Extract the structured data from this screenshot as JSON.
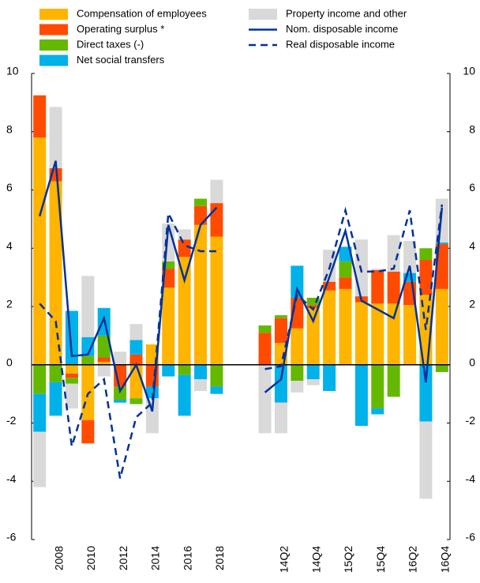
{
  "chart_data": {
    "type": "bar",
    "categories": [
      null,
      "2008",
      null,
      "2010",
      null,
      "2012",
      null,
      "2014",
      null,
      "2016",
      null,
      "2018",
      null,
      null,
      null,
      "14Q2",
      null,
      "14Q4",
      null,
      "15Q2",
      null,
      "15Q4",
      null,
      "16Q2",
      null,
      "16Q4"
    ],
    "ylim": [
      -6,
      10
    ],
    "yticks": [
      -6,
      -4,
      -2,
      0,
      2,
      4,
      6,
      8,
      10
    ],
    "series": [
      {
        "name": "Compensation of employees",
        "type": "bar",
        "color": "#ffb400",
        "values": [
          7.8,
          6.3,
          -0.3,
          -1.9,
          0.1,
          0,
          -1.15,
          0.7,
          2.65,
          3.7,
          4.8,
          4.4,
          null,
          null,
          0,
          0.75,
          1.25,
          1.95,
          2.55,
          2.6,
          2.15,
          2.1,
          2.1,
          2.05,
          2.4,
          2.6
        ]
      },
      {
        "name": "Operating surplus *",
        "type": "bar",
        "color": "#ff4b00",
        "values": [
          1.45,
          0.45,
          -0.15,
          -0.8,
          0.15,
          -0.75,
          0.35,
          -0.75,
          0.65,
          0.6,
          0.65,
          1.15,
          null,
          null,
          1.1,
          0.85,
          1.05,
          0.1,
          0.3,
          0.4,
          0.2,
          1.15,
          1.1,
          0.8,
          1.2,
          1.55
        ]
      },
      {
        "name": "Direct taxes (-)",
        "type": "bar",
        "color": "#65b800",
        "values": [
          -1.0,
          -0.6,
          -0.2,
          0.3,
          0.75,
          -0.45,
          -0.2,
          0,
          0.25,
          -0.35,
          0.25,
          -0.75,
          null,
          null,
          0.25,
          0.1,
          -0.55,
          0.25,
          0,
          0.55,
          0,
          -1.5,
          -1.1,
          0,
          0.4,
          -0.25
        ]
      },
      {
        "name": "Net social transfers",
        "type": "bar",
        "color": "#00b1ea",
        "values": [
          -1.3,
          -1.15,
          1.85,
          0.65,
          0.95,
          -0.1,
          0.5,
          -0.4,
          -0.4,
          -1.4,
          -0.5,
          -0.25,
          null,
          null,
          0,
          -1.3,
          1.1,
          -0.5,
          -0.9,
          0.5,
          -2.1,
          -0.2,
          0,
          0.3,
          -1.95,
          0.05
        ]
      },
      {
        "name": "Property income and other",
        "type": "bar",
        "color": "#d9d9d9",
        "values": [
          -1.9,
          2.1,
          -0.85,
          2.1,
          -0.4,
          0.45,
          0.55,
          -1.2,
          1.3,
          0.35,
          -0.4,
          0.8,
          null,
          null,
          -2.35,
          -1.05,
          -0.4,
          -0.2,
          1.1,
          0,
          1.95,
          0.05,
          1.25,
          1.1,
          -2.65,
          1.5
        ]
      },
      {
        "name": "Nom. disposable income",
        "type": "line",
        "color": "#003299",
        "values": [
          5.1,
          7.0,
          0.3,
          0.35,
          1.6,
          -0.9,
          0.0,
          -1.6,
          4.8,
          2.9,
          4.8,
          5.4,
          null,
          null,
          -0.95,
          -0.5,
          2.6,
          1.5,
          3.0,
          4.6,
          2.2,
          1.9,
          1.6,
          3.4,
          -0.6,
          5.4
        ]
      },
      {
        "name": "Real disposable income",
        "type": "line",
        "dashed": true,
        "color": "#003299",
        "values": [
          2.1,
          1.5,
          -2.8,
          -1.0,
          -0.5,
          -3.9,
          -1.8,
          -1.3,
          5.2,
          4.1,
          3.9,
          3.9,
          null,
          null,
          -0.15,
          -0.05,
          2.4,
          1.9,
          3.3,
          5.3,
          3.2,
          3.2,
          3.3,
          5.3,
          1.2,
          5.5
        ]
      }
    ]
  }
}
